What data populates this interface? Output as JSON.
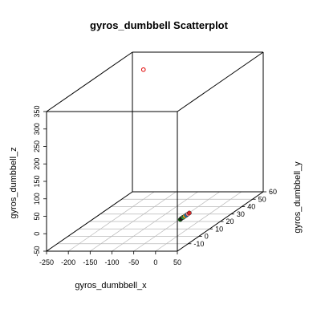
{
  "chart_data": {
    "type": "scatter",
    "title": "gyros_dumbbell Scatterplot",
    "xlabel": "gyros_dumbbell_x",
    "ylabel": "gyros_dumbbell_y",
    "zlabel": "gyros_dumbbell_z",
    "xlim": [
      -250,
      50
    ],
    "ylim": [
      -20,
      60
    ],
    "zlim": [
      -50,
      350
    ],
    "x_ticks": [
      -250,
      -200,
      -150,
      -100,
      -50,
      0,
      50
    ],
    "y_ticks": [
      -10,
      0,
      10,
      20,
      30,
      40,
      50,
      60
    ],
    "z_ticks": [
      -50,
      0,
      50,
      100,
      150,
      200,
      250,
      300,
      350
    ],
    "grid": true,
    "points": [
      {
        "x": -205,
        "y": 52,
        "z": 317,
        "color": "#e00000",
        "hollow": true
      },
      {
        "x": 5,
        "y": 1,
        "z": -4,
        "color": "#006400"
      },
      {
        "x": 5,
        "y": 2,
        "z": -3,
        "color": "#1a1a1a"
      },
      {
        "x": 6,
        "y": 3,
        "z": -2,
        "color": "#ffcc00"
      },
      {
        "x": 7,
        "y": 3,
        "z": -2,
        "color": "#2f9e44"
      },
      {
        "x": 8,
        "y": 4,
        "z": -1,
        "color": "#e8a317"
      },
      {
        "x": 9,
        "y": 5,
        "z": 0,
        "color": "#1f77b4"
      },
      {
        "x": 10,
        "y": 6,
        "z": 1,
        "color": "#f08080"
      },
      {
        "x": 11,
        "y": 7,
        "z": 2,
        "color": "#d62728"
      }
    ]
  }
}
